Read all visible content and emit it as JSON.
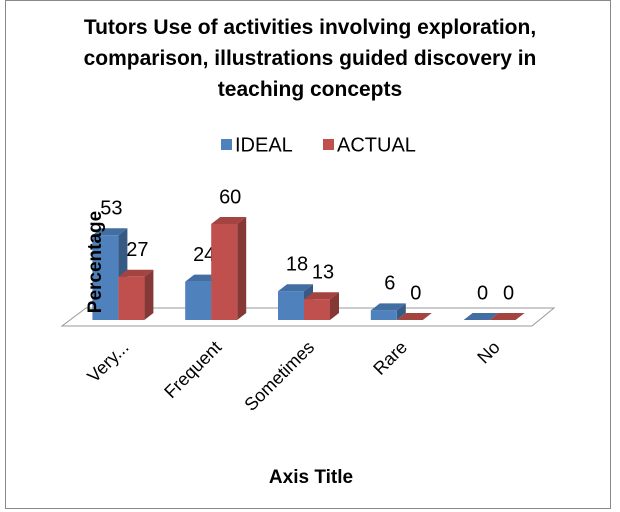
{
  "chart_data": {
    "type": "bar3d",
    "title": "Tutors  Use of activities involving exploration, comparison, illustrations guided discovery in teaching concepts",
    "categories": [
      "Very...",
      "Frequent",
      "Sometimes",
      "Rare",
      "No"
    ],
    "series": [
      {
        "name": "IDEAL",
        "color": "#4f81bd",
        "values": [
          53,
          24,
          18,
          6,
          0
        ]
      },
      {
        "name": "ACTUAL",
        "color": "#c0504d",
        "values": [
          27,
          60,
          13,
          0,
          0
        ]
      }
    ],
    "ylim": [
      0,
      60
    ],
    "y_label": "Percentage",
    "x_label": "Axis Title",
    "legend": "top"
  }
}
